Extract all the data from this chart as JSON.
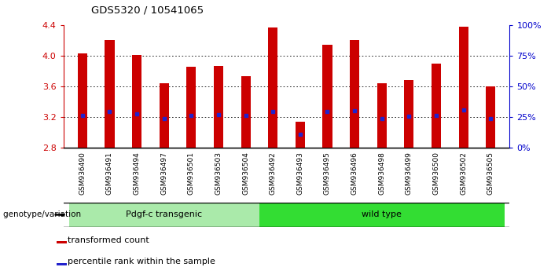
{
  "title": "GDS5320 / 10541065",
  "samples": [
    "GSM936490",
    "GSM936491",
    "GSM936494",
    "GSM936497",
    "GSM936501",
    "GSM936503",
    "GSM936504",
    "GSM936492",
    "GSM936493",
    "GSM936495",
    "GSM936496",
    "GSM936498",
    "GSM936499",
    "GSM936500",
    "GSM936502",
    "GSM936505"
  ],
  "bar_tops": [
    4.03,
    4.2,
    4.01,
    3.64,
    3.85,
    3.86,
    3.73,
    4.37,
    3.13,
    4.14,
    4.2,
    3.64,
    3.68,
    3.9,
    4.38,
    3.6
  ],
  "blue_markers": [
    3.22,
    3.27,
    3.24,
    3.18,
    3.22,
    3.23,
    3.22,
    3.27,
    2.97,
    3.27,
    3.28,
    3.18,
    3.21,
    3.22,
    3.29,
    3.18
  ],
  "bar_bottom": 2.8,
  "ylim_left": [
    2.8,
    4.4
  ],
  "ylim_right": [
    0,
    100
  ],
  "yticks_left": [
    2.8,
    3.2,
    3.6,
    4.0,
    4.4
  ],
  "yticks_right": [
    0,
    25,
    50,
    75,
    100
  ],
  "groups": [
    {
      "label": "Pdgf-c transgenic",
      "start": 0,
      "end": 7
    },
    {
      "label": "wild type",
      "start": 7,
      "end": 16
    }
  ],
  "group_colors": [
    "#aaeaaa",
    "#33dd33"
  ],
  "bar_color": "#cc0000",
  "blue_color": "#2222cc",
  "grid_color": "#000000",
  "tick_label_color_left": "#cc0000",
  "tick_label_color_right": "#0000cc",
  "legend_items": [
    {
      "color": "#cc0000",
      "label": "transformed count"
    },
    {
      "color": "#2222cc",
      "label": "percentile rank within the sample"
    }
  ],
  "xlabel_group": "genotype/variation",
  "background_color": "#ffffff",
  "ticklabel_bg": "#cccccc"
}
